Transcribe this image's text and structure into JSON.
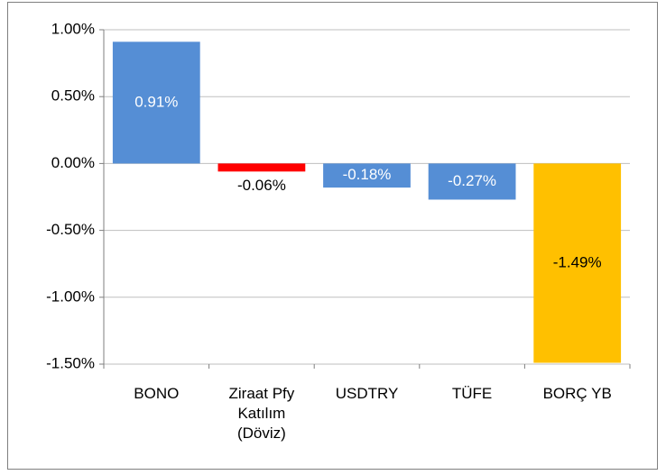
{
  "chart_data": {
    "type": "bar",
    "categories": [
      "BONO",
      "Ziraat Pfy\nKatılım\n(Döviz)",
      "USDTRY",
      "TÜFE",
      "BORÇ YB"
    ],
    "values": [
      0.91,
      -0.06,
      -0.18,
      -0.27,
      -1.49
    ],
    "value_labels": [
      "0.91%",
      "-0.06%",
      "-0.18%",
      "-0.27%",
      "-1.49%"
    ],
    "colors": [
      "#558ed5",
      "#ff0000",
      "#558ed5",
      "#558ed5",
      "#ffc000"
    ],
    "label_colors": [
      "#ffffff",
      "#000000",
      "#ffffff",
      "#ffffff",
      "#000000"
    ],
    "ylim": [
      -1.5,
      1
    ],
    "yticks": [
      {
        "value": -1.5,
        "label": "-1.50%"
      },
      {
        "value": -1,
        "label": "-1.00%"
      },
      {
        "value": -0.5,
        "label": "-0.50%"
      },
      {
        "value": 0,
        "label": "0.00%"
      },
      {
        "value": 0.5,
        "label": "0.50%"
      },
      {
        "value": 1,
        "label": "1.00%"
      }
    ],
    "grid": true
  }
}
